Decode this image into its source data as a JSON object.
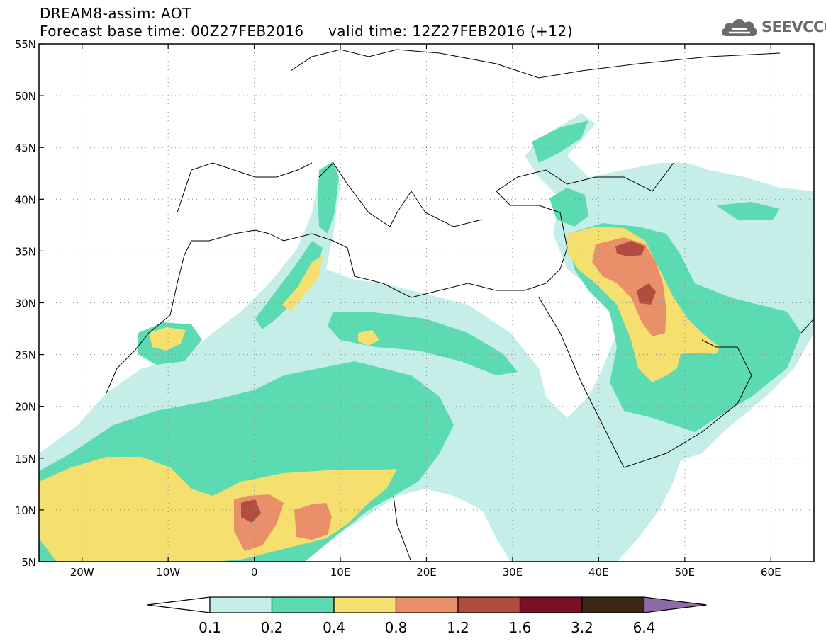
{
  "header": {
    "title_line1": "DREAM8-assim: AOT",
    "title_line2": "Forecast base time: 00Z27FEB2016     valid time: 12Z27FEB2016 (+12)"
  },
  "logo": {
    "text": "SEEVCCC",
    "icon": "cloud-icon",
    "color": "#6b6b6b"
  },
  "map": {
    "lon_range": [
      -25,
      65
    ],
    "lat_range": [
      5,
      55
    ],
    "lat_ticks": [
      {
        "value": 55,
        "label": "55N"
      },
      {
        "value": 50,
        "label": "50N"
      },
      {
        "value": 45,
        "label": "45N"
      },
      {
        "value": 40,
        "label": "40N"
      },
      {
        "value": 35,
        "label": "35N"
      },
      {
        "value": 30,
        "label": "30N"
      },
      {
        "value": 25,
        "label": "25N"
      },
      {
        "value": 20,
        "label": "20N"
      },
      {
        "value": 15,
        "label": "15N"
      },
      {
        "value": 10,
        "label": "10N"
      },
      {
        "value": 5,
        "label": "5N"
      }
    ],
    "lon_ticks": [
      {
        "value": -20,
        "label": "20W"
      },
      {
        "value": -10,
        "label": "10W"
      },
      {
        "value": 0,
        "label": "0"
      },
      {
        "value": 10,
        "label": "10E"
      },
      {
        "value": 20,
        "label": "20E"
      },
      {
        "value": 30,
        "label": "30E"
      },
      {
        "value": 40,
        "label": "40E"
      },
      {
        "value": 50,
        "label": "50E"
      },
      {
        "value": 60,
        "label": "60E"
      }
    ]
  },
  "colorbar": {
    "labels": [
      "0.1",
      "0.2",
      "0.4",
      "0.8",
      "1.2",
      "1.6",
      "3.2",
      "6.4"
    ],
    "colors": {
      "below": "#ffffff",
      "bins": [
        "#c6eee8",
        "#5cdbb3",
        "#f5df6e",
        "#e9906a",
        "#b14d40",
        "#7a0f25",
        "#3b2814"
      ],
      "above": "#8f6aa8"
    }
  }
}
